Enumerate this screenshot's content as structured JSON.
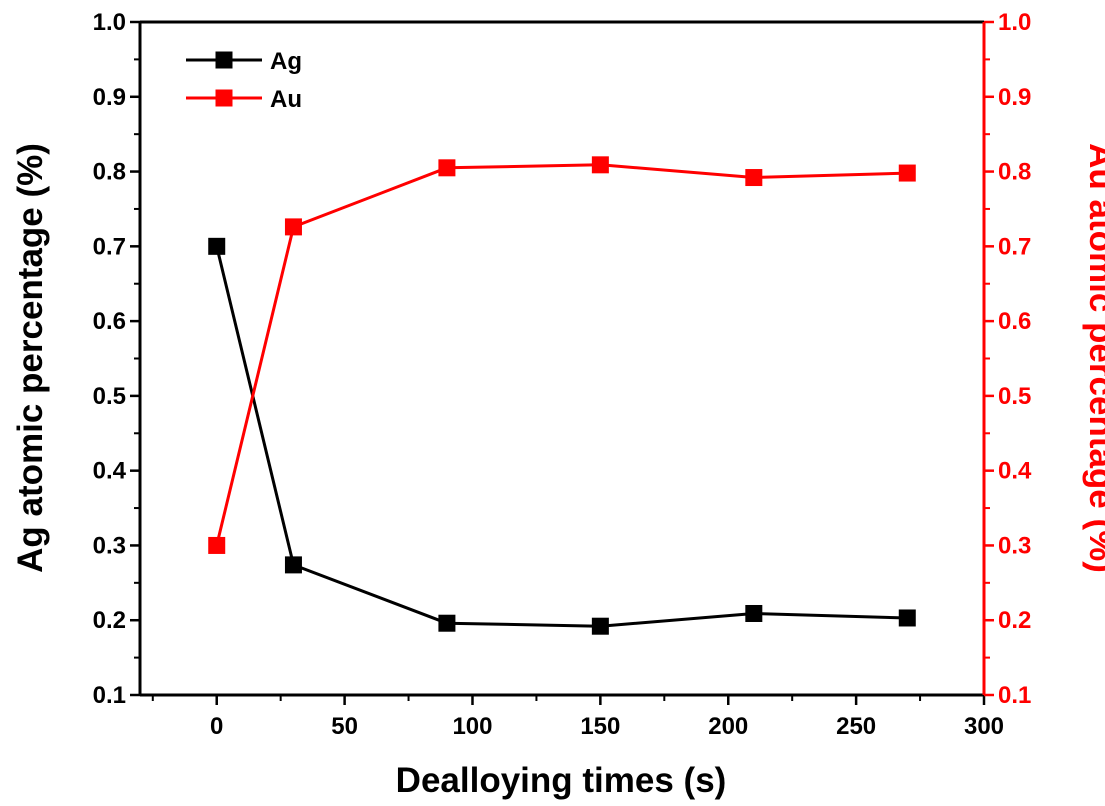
{
  "chart_data": {
    "type": "line",
    "x": [
      0,
      30,
      90,
      150,
      210,
      270
    ],
    "series": [
      {
        "name": "Ag",
        "axis": "left",
        "color": "#000000",
        "marker": "square",
        "values": [
          0.7,
          0.274,
          0.196,
          0.192,
          0.209,
          0.203
        ]
      },
      {
        "name": "Au",
        "axis": "right",
        "color": "#ff0000",
        "marker": "square",
        "values": [
          0.3,
          0.726,
          0.805,
          0.809,
          0.792,
          0.798
        ]
      }
    ],
    "xlabel": "Dealloying times (s)",
    "ylabel_left": "Ag atomic percentage (%)",
    "ylabel_right": "Au atomic percentage (%)",
    "xlim": [
      -30,
      300
    ],
    "ylim": [
      0.1,
      1.0
    ],
    "xticks": [
      "0",
      "50",
      "100",
      "150",
      "200",
      "250",
      "300"
    ],
    "yticks": [
      "0.1",
      "0.2",
      "0.3",
      "0.4",
      "0.5",
      "0.6",
      "0.7",
      "0.8",
      "0.9",
      "1.0"
    ],
    "grid": false,
    "legend_position": "top-left",
    "left_axis_color": "#000000",
    "right_axis_color": "#ff0000"
  }
}
